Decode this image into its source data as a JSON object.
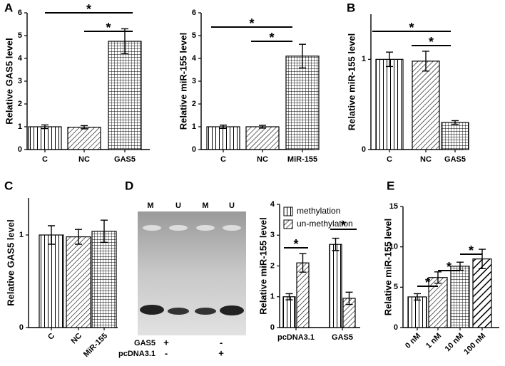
{
  "panel_labels": [
    "A",
    "B",
    "C",
    "D",
    "E"
  ],
  "chart_data": [
    {
      "type": "bar",
      "y_label": "Relative GAS5 level",
      "categories": [
        "C",
        "NC",
        "GAS5"
      ],
      "values": [
        1,
        0.98,
        4.75
      ],
      "errors": [
        0.08,
        0.07,
        0.55
      ],
      "patterns": [
        "vertical",
        "diagonal",
        "grid"
      ],
      "color": "#000000",
      "ylim": [
        0,
        6
      ],
      "yticks": [
        0,
        1,
        2,
        3,
        4,
        5,
        6
      ],
      "annotations": [
        "*",
        "*"
      ]
    },
    {
      "type": "bar",
      "y_label": "Relative miR-155 level",
      "categories": [
        "C",
        "NC",
        "MiR-155"
      ],
      "values": [
        1,
        1,
        4.1
      ],
      "errors": [
        0.07,
        0.06,
        0.52
      ],
      "patterns": [
        "vertical",
        "diagonal",
        "grid"
      ],
      "color": "#000000",
      "ylim": [
        0,
        6
      ],
      "yticks": [
        0,
        1,
        2,
        3,
        4,
        5,
        6
      ],
      "annotations": [
        "*",
        "*"
      ]
    },
    {
      "type": "bar",
      "y_label": "Relative miR-155 level",
      "categories": [
        "C",
        "NC",
        "GAS5"
      ],
      "values": [
        1,
        0.98,
        0.3
      ],
      "errors": [
        0.08,
        0.11,
        0.02
      ],
      "patterns": [
        "vertical",
        "diagonal",
        "grid"
      ],
      "color": "#000000",
      "ylim": [
        0,
        1.5
      ],
      "yticks": [
        0,
        1
      ],
      "annotations": [
        "*",
        "*"
      ]
    },
    {
      "type": "bar",
      "y_label": "Relative GAS5 level",
      "categories": [
        "C",
        "NC",
        "MiR-155"
      ],
      "values": [
        1,
        0.98,
        1.04
      ],
      "errors": [
        0.1,
        0.08,
        0.12
      ],
      "patterns": [
        "vertical",
        "diagonal",
        "grid"
      ],
      "color": "#000000",
      "ylim": [
        0,
        1.4
      ],
      "yticks": [
        0,
        1
      ],
      "annotations": []
    },
    {
      "type": "grouped_bar",
      "y_label": "Relative miR-155 level",
      "categories": [
        "pcDNA3.1",
        "GAS5"
      ],
      "series": [
        {
          "name": "methylation",
          "pattern": "vertical",
          "values": [
            1,
            2.7
          ],
          "errors": [
            0.1,
            0.2
          ]
        },
        {
          "name": "un-methylation",
          "pattern": "diagonal",
          "values": [
            2.1,
            0.95
          ],
          "errors": [
            0.3,
            0.2
          ]
        }
      ],
      "color": "#000000",
      "ylim": [
        0,
        4
      ],
      "yticks": [
        0,
        1,
        2,
        3,
        4
      ],
      "legend": "top-left",
      "annotations": [
        "*",
        "*"
      ]
    },
    {
      "type": "bar",
      "y_label": "Relative miR-155 level",
      "categories": [
        "0 nM",
        "1 nM",
        "10 nM",
        "100 nM"
      ],
      "values": [
        3.8,
        6.2,
        7.6,
        8.5
      ],
      "errors": [
        0.4,
        0.7,
        0.5,
        1.2
      ],
      "patterns": [
        "vertical",
        "diagonal",
        "grid",
        "thick"
      ],
      "color": "#000000",
      "ylim": [
        0,
        15
      ],
      "yticks": [
        0,
        5,
        10,
        15
      ],
      "annotations": [
        "*",
        "*",
        "*"
      ]
    }
  ],
  "gel": {
    "lanes": [
      "M",
      "U",
      "M",
      "U"
    ],
    "rows": [
      {
        "name": "GAS5",
        "marks": [
          "+",
          "-"
        ]
      },
      {
        "name": "pcDNA3.1",
        "marks": [
          "-",
          "+"
        ]
      }
    ]
  }
}
